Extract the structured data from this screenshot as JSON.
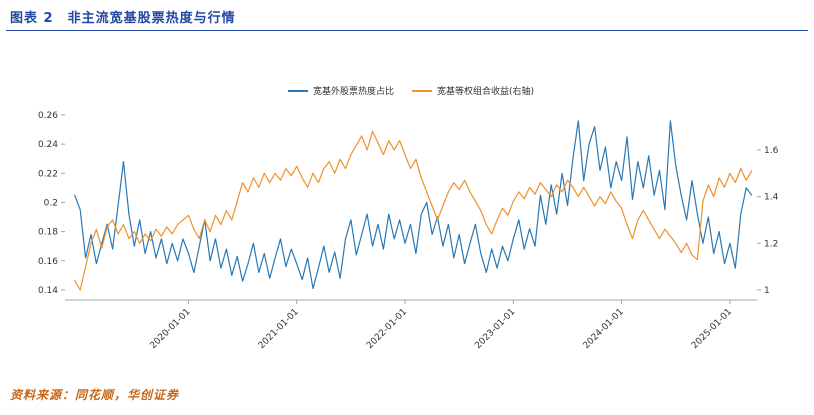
{
  "figure": {
    "title": "图表 2　非主流宽基股票热度与行情",
    "source": "资料来源：同花顺，华创证券"
  },
  "colors": {
    "title_blue": "#2447A5",
    "source_orange": "#C96718",
    "line_blue": "#2878B5",
    "line_orange": "#F0912D",
    "axis_gray": "#A6A6A6",
    "tick_text": "#333333"
  },
  "chart_data": {
    "type": "line",
    "title": "非主流宽基股票热度与行情",
    "grid": false,
    "legend_position": "top-center",
    "x_start": 2018.95,
    "x_step": 0.05,
    "x_range": [
      2018.86,
      2025.25
    ],
    "x_ticks": [
      2020,
      2021,
      2022,
      2023,
      2024,
      2025
    ],
    "x_tick_labels": [
      "2020-01-01",
      "2021-01-01",
      "2022-01-01",
      "2023-01-01",
      "2024-01-01",
      "2025-01-01"
    ],
    "left_axis": {
      "range": [
        0.1331,
        0.2874
      ],
      "ticks": [
        0.14,
        0.16,
        0.18,
        0.2,
        0.22,
        0.24,
        0.26
      ]
    },
    "right_axis": {
      "range": [
        0.957,
        1.921
      ],
      "ticks": [
        1,
        1.2,
        1.4,
        1.6
      ]
    },
    "series": [
      {
        "name": "宽基外股票热度占比",
        "axis": "left",
        "color": "#2878B5",
        "values": [
          0.205,
          0.195,
          0.162,
          0.178,
          0.158,
          0.172,
          0.185,
          0.168,
          0.198,
          0.228,
          0.192,
          0.17,
          0.188,
          0.165,
          0.18,
          0.162,
          0.175,
          0.158,
          0.172,
          0.16,
          0.175,
          0.165,
          0.152,
          0.17,
          0.188,
          0.16,
          0.175,
          0.155,
          0.168,
          0.15,
          0.163,
          0.146,
          0.158,
          0.172,
          0.152,
          0.165,
          0.148,
          0.162,
          0.175,
          0.156,
          0.168,
          0.158,
          0.147,
          0.162,
          0.141,
          0.155,
          0.17,
          0.152,
          0.166,
          0.148,
          0.175,
          0.188,
          0.164,
          0.178,
          0.192,
          0.17,
          0.185,
          0.168,
          0.192,
          0.175,
          0.188,
          0.172,
          0.185,
          0.165,
          0.192,
          0.2,
          0.178,
          0.19,
          0.17,
          0.185,
          0.162,
          0.178,
          0.158,
          0.172,
          0.185,
          0.165,
          0.152,
          0.168,
          0.155,
          0.17,
          0.16,
          0.175,
          0.188,
          0.168,
          0.182,
          0.17,
          0.205,
          0.185,
          0.212,
          0.192,
          0.22,
          0.198,
          0.23,
          0.256,
          0.215,
          0.24,
          0.252,
          0.222,
          0.238,
          0.21,
          0.228,
          0.215,
          0.245,
          0.202,
          0.228,
          0.21,
          0.232,
          0.205,
          0.222,
          0.195,
          0.256,
          0.225,
          0.205,
          0.188,
          0.215,
          0.192,
          0.172,
          0.19,
          0.165,
          0.18,
          0.158,
          0.172,
          0.155,
          0.192,
          0.21,
          0.205
        ]
      },
      {
        "name": "宽基等权组合收益(右轴)",
        "axis": "right",
        "color": "#F0912D",
        "values": [
          1.04,
          1.0,
          1.1,
          1.2,
          1.26,
          1.18,
          1.27,
          1.3,
          1.24,
          1.28,
          1.22,
          1.25,
          1.2,
          1.24,
          1.21,
          1.26,
          1.23,
          1.27,
          1.24,
          1.28,
          1.3,
          1.32,
          1.26,
          1.22,
          1.3,
          1.25,
          1.32,
          1.28,
          1.34,
          1.3,
          1.38,
          1.46,
          1.42,
          1.48,
          1.44,
          1.5,
          1.46,
          1.5,
          1.47,
          1.52,
          1.49,
          1.53,
          1.48,
          1.44,
          1.5,
          1.46,
          1.52,
          1.55,
          1.5,
          1.56,
          1.52,
          1.58,
          1.62,
          1.66,
          1.6,
          1.68,
          1.63,
          1.58,
          1.64,
          1.6,
          1.64,
          1.58,
          1.52,
          1.56,
          1.48,
          1.42,
          1.36,
          1.3,
          1.36,
          1.42,
          1.46,
          1.43,
          1.47,
          1.42,
          1.38,
          1.34,
          1.28,
          1.24,
          1.3,
          1.35,
          1.32,
          1.38,
          1.42,
          1.39,
          1.44,
          1.41,
          1.46,
          1.43,
          1.4,
          1.45,
          1.42,
          1.47,
          1.44,
          1.4,
          1.44,
          1.4,
          1.36,
          1.4,
          1.37,
          1.42,
          1.38,
          1.35,
          1.28,
          1.22,
          1.3,
          1.34,
          1.3,
          1.26,
          1.22,
          1.26,
          1.23,
          1.2,
          1.16,
          1.2,
          1.15,
          1.13,
          1.38,
          1.45,
          1.4,
          1.48,
          1.44,
          1.5,
          1.46,
          1.52,
          1.47,
          1.51
        ]
      }
    ]
  }
}
